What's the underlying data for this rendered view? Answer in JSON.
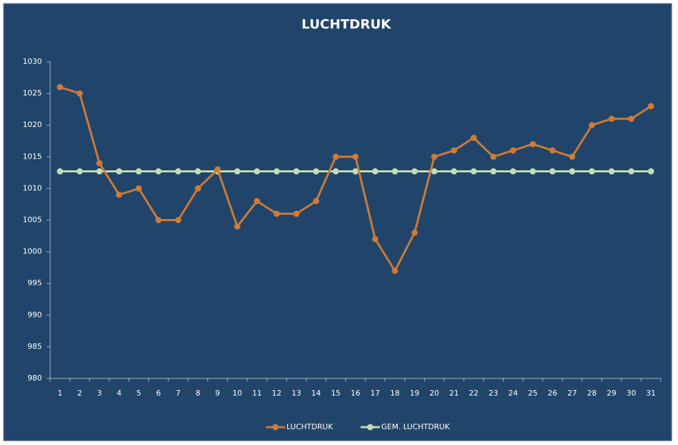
{
  "chart_data": {
    "type": "line",
    "title": "LUCHTDRUK",
    "categories": [
      1,
      2,
      3,
      4,
      5,
      6,
      7,
      8,
      9,
      10,
      11,
      12,
      13,
      14,
      15,
      16,
      17,
      18,
      19,
      20,
      21,
      22,
      23,
      24,
      25,
      26,
      27,
      28,
      29,
      30,
      31
    ],
    "series": [
      {
        "name": "LUCHTDRUK",
        "color": "#d07a36",
        "values": [
          1026,
          1025,
          1014,
          1009,
          1010,
          1005,
          1005,
          1010,
          1013,
          1004,
          1008,
          1006,
          1006,
          1008,
          1015,
          1015,
          1002,
          997,
          1003,
          1015,
          1016,
          1018,
          1015,
          1016,
          1017,
          1016,
          1015,
          1020,
          1021,
          1021,
          1023
        ]
      },
      {
        "name": "GEM. LUCHTDRUK",
        "color": "#c4dcb4",
        "values": [
          1012.7,
          1012.7,
          1012.7,
          1012.7,
          1012.7,
          1012.7,
          1012.7,
          1012.7,
          1012.7,
          1012.7,
          1012.7,
          1012.7,
          1012.7,
          1012.7,
          1012.7,
          1012.7,
          1012.7,
          1012.7,
          1012.7,
          1012.7,
          1012.7,
          1012.7,
          1012.7,
          1012.7,
          1012.7,
          1012.7,
          1012.7,
          1012.7,
          1012.7,
          1012.7,
          1012.7
        ]
      }
    ],
    "ylim": [
      980,
      1030
    ],
    "yticks": [
      980,
      985,
      990,
      995,
      1000,
      1005,
      1010,
      1015,
      1020,
      1025,
      1030
    ],
    "grid": false,
    "legend": "bottom"
  }
}
